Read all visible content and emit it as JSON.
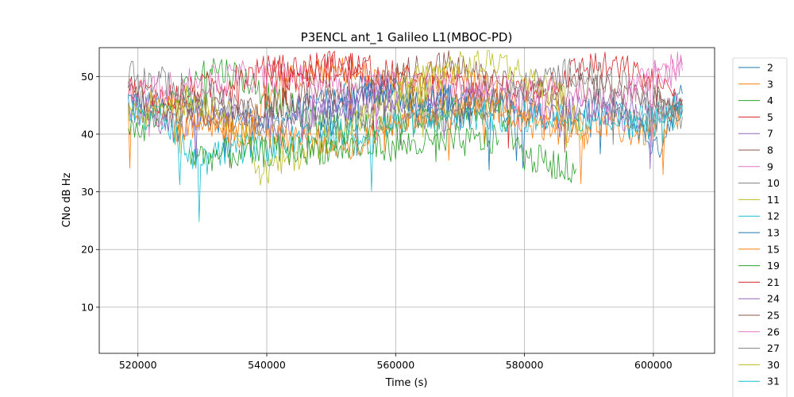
{
  "chart_data": {
    "type": "line",
    "title": "P3ENCL ant_1 Galileo L1(MBOC-PD)",
    "xlabel": "Time (s)",
    "ylabel": "CNo dB Hz",
    "xlim": [
      514000,
      609500
    ],
    "ylim": [
      2,
      55
    ],
    "xticks": [
      520000,
      540000,
      560000,
      580000,
      600000
    ],
    "yticks": [
      10,
      20,
      30,
      40,
      50
    ],
    "grid": true,
    "legend_position": "right-outside",
    "series": [
      {
        "name": "2",
        "color": "#1f77b4",
        "x": [
          518500,
          525000,
          532000,
          540000,
          548000,
          556000,
          563000,
          570000,
          578000,
          586000,
          592000,
          598000,
          600500,
          604500
        ],
        "y": [
          46,
          44,
          43,
          42,
          45,
          48,
          47,
          46,
          44,
          43,
          45,
          41,
          37,
          47
        ]
      },
      {
        "name": "3",
        "color": "#ff7f0e",
        "x": [
          518500,
          524000,
          530000,
          536000,
          541000,
          545000,
          552000,
          558000,
          566000,
          574000,
          582000,
          590000,
          598000,
          604500
        ],
        "y": [
          44,
          46,
          43,
          40,
          48,
          50,
          51,
          49,
          50,
          48,
          44,
          42,
          40,
          44
        ]
      },
      {
        "name": "4",
        "color": "#2ca02c",
        "x": [
          518500,
          522000,
          526000,
          531000,
          536000,
          540000,
          546000,
          552000,
          558000,
          576000,
          580000,
          584000,
          588000
        ],
        "y": [
          40,
          42,
          46,
          52,
          50,
          47,
          43,
          41,
          42,
          45,
          36,
          35,
          34
        ]
      },
      {
        "name": "5",
        "color": "#d62728",
        "x": [
          518500,
          524000,
          540000,
          552000,
          560000,
          566000,
          572000,
          578000,
          584000,
          590000,
          596000,
          604500
        ],
        "y": [
          48,
          46,
          51,
          52,
          50,
          48,
          49,
          47,
          49,
          52,
          51,
          46
        ]
      },
      {
        "name": "7",
        "color": "#9467bd",
        "x": [
          518500,
          522000,
          526000,
          532000,
          540000,
          548000,
          556000,
          564000,
          572000,
          580000,
          588000,
          596000,
          604500
        ],
        "y": [
          45,
          43,
          41,
          44,
          42,
          43,
          46,
          44,
          47,
          45,
          44,
          43,
          45
        ]
      },
      {
        "name": "8",
        "color": "#8c564b",
        "x": [
          518500,
          524000,
          528000,
          534000,
          540000,
          548000,
          556000,
          562000,
          568000,
          574000,
          582000,
          590000,
          598000,
          604500
        ],
        "y": [
          48,
          42,
          45,
          43,
          44,
          48,
          47,
          51,
          52,
          50,
          47,
          48,
          47,
          44
        ]
      },
      {
        "name": "9",
        "color": "#e377c2",
        "x": [
          518500,
          524000,
          530000,
          536000,
          588000,
          592000,
          596000,
          600000,
          604500
        ],
        "y": [
          47,
          48,
          49,
          50,
          47,
          46,
          47,
          50,
          51
        ]
      },
      {
        "name": "10",
        "color": "#7f7f7f",
        "x": [
          518500,
          524000,
          530000,
          534000,
          540000,
          560000,
          568000,
          576000,
          582000,
          588000,
          594000,
          600000,
          604500
        ],
        "y": [
          50,
          49,
          47,
          45,
          42,
          44,
          43,
          46,
          49,
          51,
          49,
          46,
          44
        ]
      },
      {
        "name": "11",
        "color": "#bcbd22",
        "x": [
          518500,
          526000,
          532000,
          537000,
          539000,
          554000,
          560000,
          566000,
          572000,
          576000,
          580000,
          586000,
          589000
        ],
        "y": [
          44,
          46,
          45,
          40,
          33,
          42,
          47,
          51,
          52,
          53,
          50,
          46,
          41
        ]
      },
      {
        "name": "12",
        "color": "#17becf",
        "x": [
          518500,
          522000,
          526000,
          529000,
          568000,
          576000,
          584000,
          592000,
          600000,
          604500
        ],
        "y": [
          45,
          43,
          40,
          36,
          43,
          43,
          43,
          43,
          43,
          45
        ]
      },
      {
        "name": "13",
        "color": "#1f77b4",
        "x": [
          548000,
          552000,
          556000,
          560000,
          564000,
          568000,
          572000
        ],
        "y": [
          41,
          44,
          48,
          47,
          45,
          46,
          44
        ]
      },
      {
        "name": "15",
        "color": "#ff7f0e",
        "x": [
          526000,
          530000,
          534000,
          555000,
          558000,
          566000,
          572000,
          578000,
          584000,
          590000
        ],
        "y": [
          40,
          43,
          41,
          38,
          42,
          44,
          45,
          43,
          41,
          40
        ]
      },
      {
        "name": "19",
        "color": "#2ca02c",
        "x": [
          528000,
          540000,
          560000,
          576000
        ],
        "y": [
          36,
          37,
          38,
          39
        ]
      },
      {
        "name": "21",
        "color": "#d62728",
        "x": [
          540000,
          544000,
          550000,
          556000
        ],
        "y": [
          51,
          50,
          52,
          51
        ]
      },
      {
        "name": "24",
        "color": "#9467bd",
        "x": [
          544000,
          548000,
          552000,
          556000,
          560000
        ],
        "y": [
          44,
          46,
          45,
          47,
          46
        ]
      },
      {
        "name": "25",
        "color": "#8c564b",
        "x": [
          600000,
          602000,
          604500
        ],
        "y": [
          44,
          46,
          45
        ]
      },
      {
        "name": "26",
        "color": "#e377c2",
        "x": [
          596000,
          600000,
          604500
        ],
        "y": [
          48,
          50,
          52
        ]
      },
      {
        "name": "27",
        "color": "#7f7f7f",
        "x": [
          590000,
          594000,
          598000,
          604500
        ],
        "y": [
          47,
          45,
          42,
          43
        ]
      },
      {
        "name": "30",
        "color": "#bcbd22",
        "x": [
          560000,
          564000,
          568000
        ],
        "y": [
          46,
          48,
          50
        ]
      },
      {
        "name": "31",
        "color": "#17becf",
        "x": [
          596000,
          600000,
          604500
        ],
        "y": [
          41,
          42,
          44
        ]
      }
    ]
  }
}
